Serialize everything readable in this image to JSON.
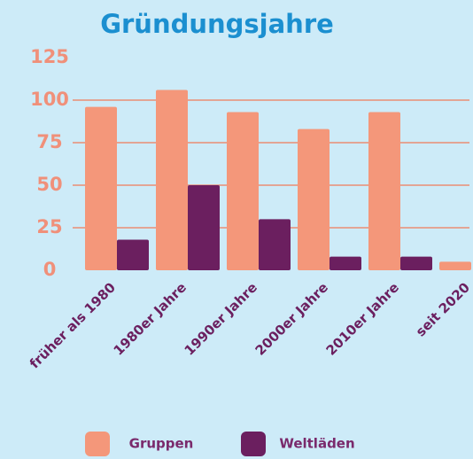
{
  "chart_data": {
    "type": "bar",
    "title": "Gründungsjahre",
    "categories": [
      "früher als 1980",
      "1980er Jahre",
      "1990er Jahre",
      "2000er Jahre",
      "2010er Jahre",
      "seit 2020"
    ],
    "series": [
      {
        "name": "Gruppen",
        "color": "#f4977a",
        "values": [
          96,
          106,
          93,
          83,
          93,
          5
        ]
      },
      {
        "name": "Weltläden",
        "color": "#6b1f5f",
        "values": [
          18,
          50,
          30,
          8,
          8,
          0
        ]
      }
    ],
    "ylim": [
      0,
      125
    ],
    "yticks": [
      0,
      25,
      50,
      75,
      100,
      125
    ],
    "grid": true
  }
}
